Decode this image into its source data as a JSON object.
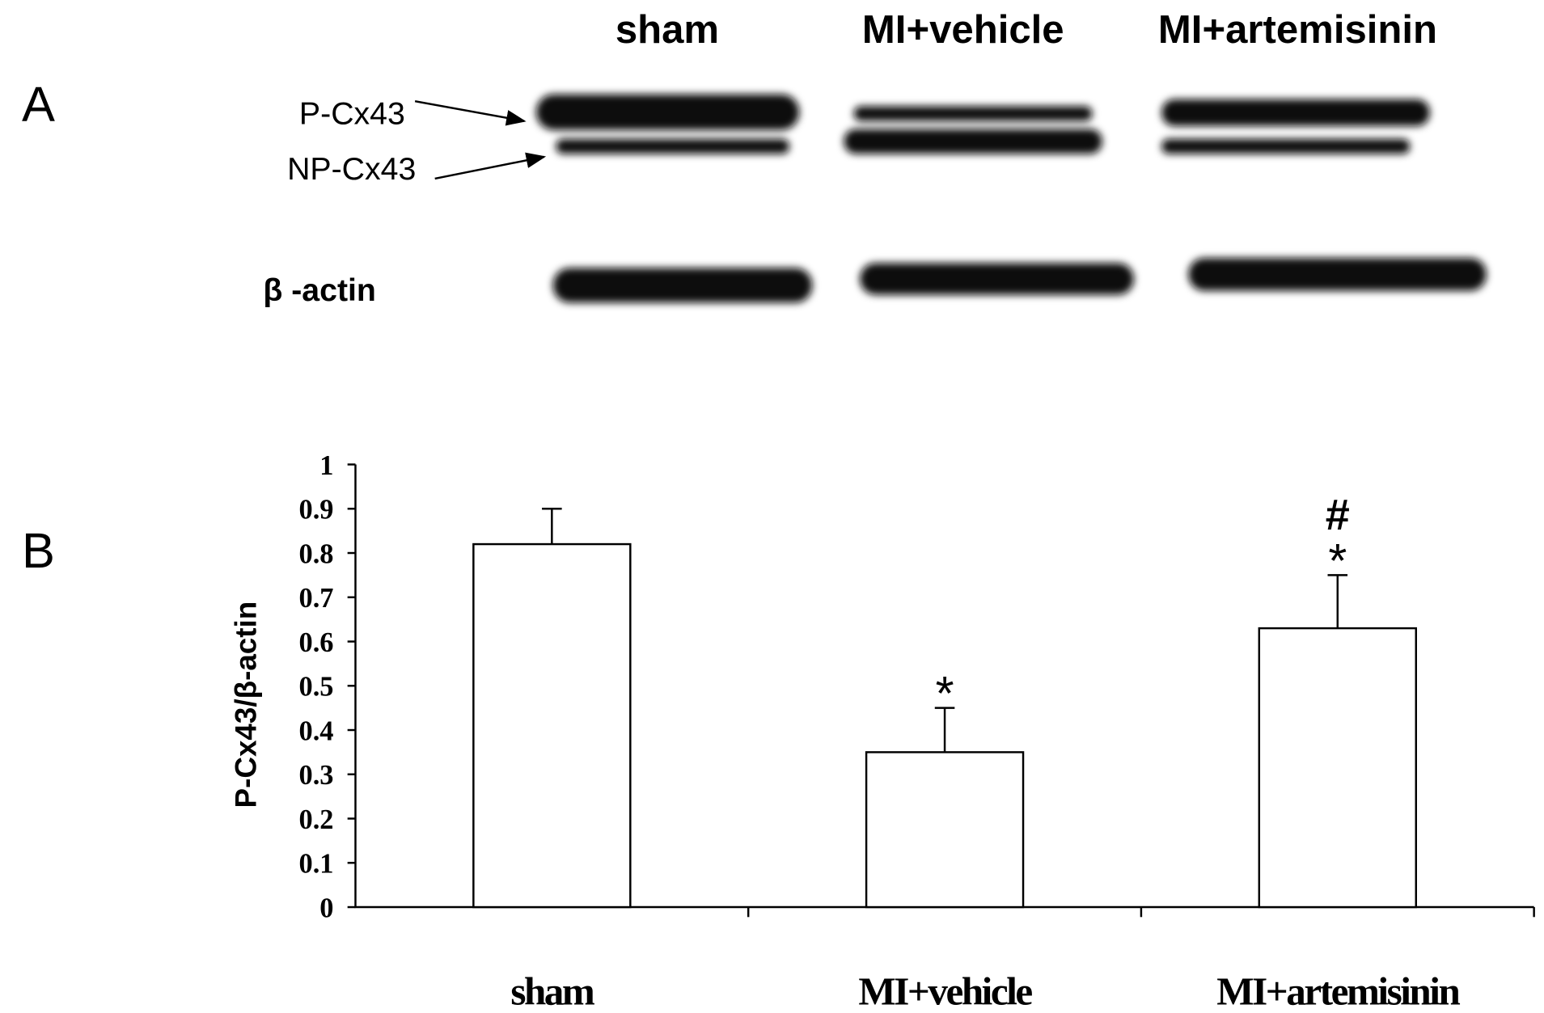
{
  "panel_a": {
    "label": "A",
    "lanes": [
      "sham",
      "MI+vehicle",
      "MI+artemisinin"
    ],
    "bands": [
      "P-Cx43",
      "NP-Cx43",
      "β -actin"
    ]
  },
  "panel_b": {
    "label": "B"
  },
  "chart_data": {
    "type": "bar",
    "y_label": "P-Cx43/β-actin",
    "categories": [
      "sham",
      "MI+vehicle",
      "MI+artemisinin"
    ],
    "values": [
      0.82,
      0.35,
      0.63
    ],
    "errors": [
      0.08,
      0.1,
      0.12
    ],
    "annotations": [
      null,
      [
        "*"
      ],
      [
        "*",
        "#"
      ]
    ],
    "color": "#ffffff",
    "ylim": [
      0,
      1
    ],
    "yticks": [
      0,
      0.1,
      0.2,
      0.3,
      0.4,
      0.5,
      0.6,
      0.7,
      0.8,
      0.9,
      1
    ],
    "grid": false
  }
}
